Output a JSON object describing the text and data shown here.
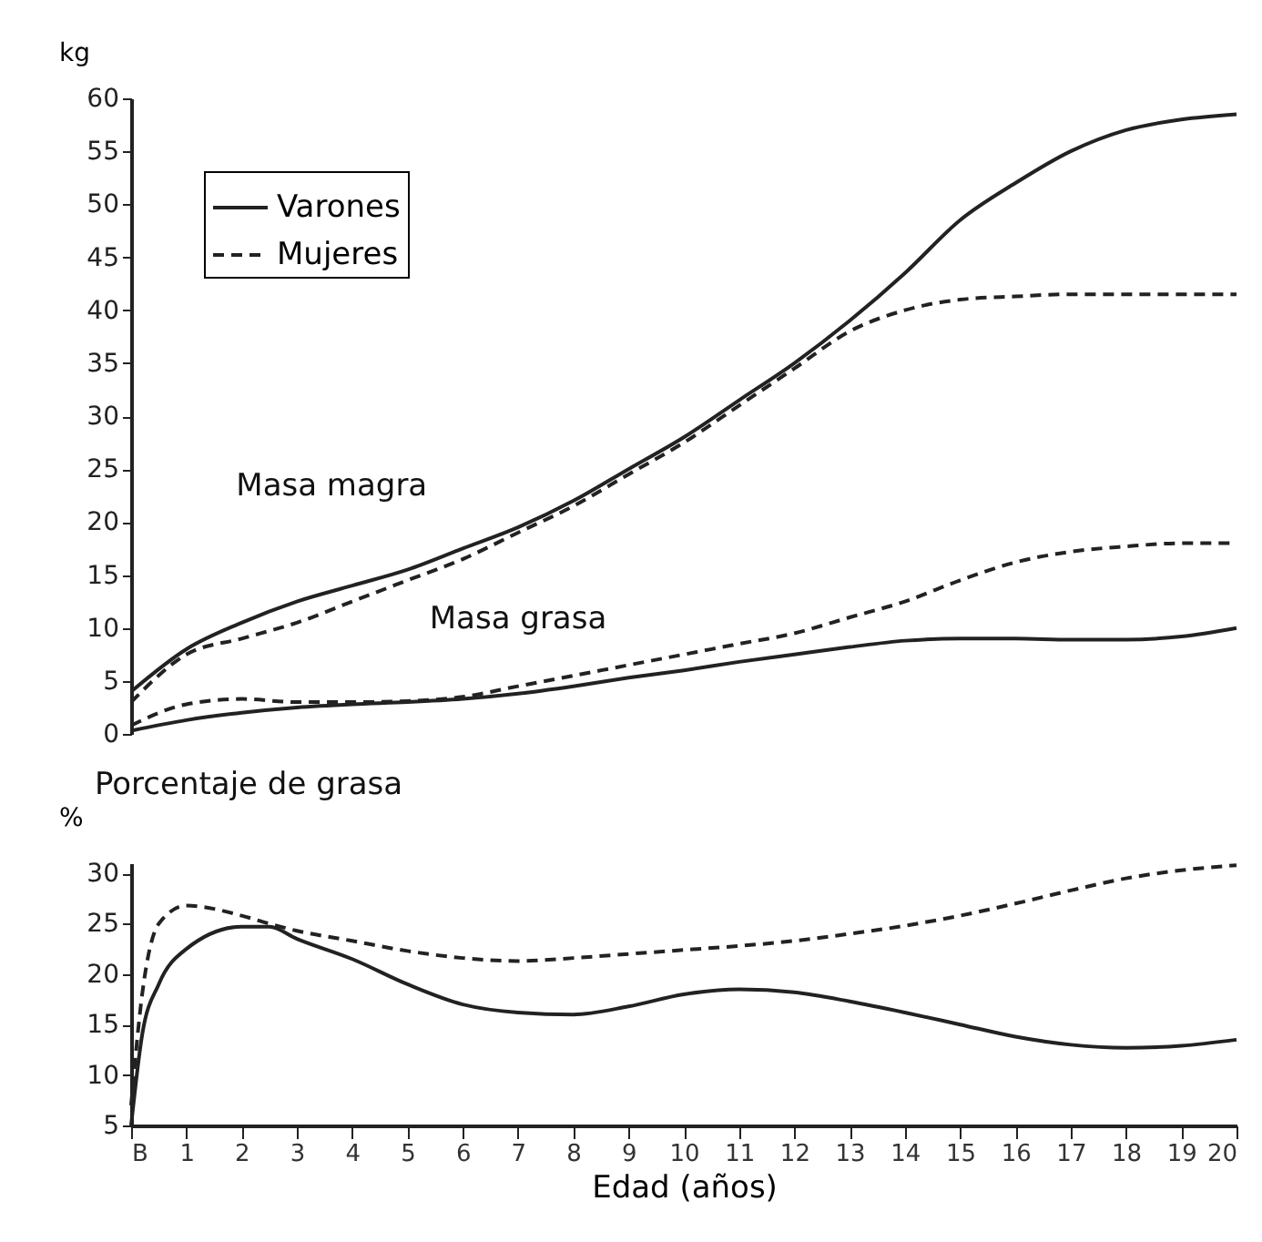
{
  "chart_data": [
    {
      "type": "line",
      "ylabel": "kg",
      "xlim": [
        0,
        20
      ],
      "ylim": [
        0,
        60
      ],
      "yticks": [
        0,
        5,
        10,
        15,
        20,
        25,
        30,
        35,
        40,
        45,
        50,
        55,
        60
      ],
      "tick_labels": "y",
      "grid": false,
      "legend": "top left",
      "marker": "none",
      "x": [
        0,
        1,
        2,
        3,
        4,
        5,
        6,
        7,
        8,
        9,
        10,
        11,
        12,
        13,
        14,
        15,
        16,
        17,
        18,
        19,
        20
      ],
      "annotations": [
        "Masa magra",
        "Masa grasa"
      ],
      "series": [
        {
          "name": "Varones",
          "color": "#222222",
          "line_style": "solid",
          "values": [
            4,
            8,
            10.5,
            12.5,
            14,
            15.5,
            17.5,
            19.5,
            22,
            25,
            28,
            31.5,
            35,
            39,
            43.5,
            48.5,
            52,
            55,
            57,
            58,
            58.5
          ]
        },
        {
          "name": "Mujeres",
          "color": "#222222",
          "line_style": "dashed",
          "values": [
            3,
            7.5,
            9,
            10.5,
            12.5,
            14.5,
            16.5,
            19,
            21.5,
            24.5,
            27.5,
            31,
            34.5,
            38,
            40,
            41,
            41.3,
            41.5,
            41.5,
            41.5,
            41.5
          ]
        },
        {
          "color": "#222222",
          "line_style": "solid",
          "values": [
            0.3,
            1.3,
            2,
            2.5,
            2.8,
            3,
            3.3,
            3.8,
            4.5,
            5.3,
            6,
            6.8,
            7.5,
            8.2,
            8.8,
            9,
            9,
            8.9,
            8.9,
            9.2,
            10
          ]
        },
        {
          "color": "#222222",
          "line_style": "dashed",
          "values": [
            0.8,
            2.8,
            3.3,
            3,
            3,
            3.1,
            3.5,
            4.5,
            5.5,
            6.5,
            7.5,
            8.5,
            9.5,
            11,
            12.5,
            14.5,
            16.2,
            17.2,
            17.7,
            18,
            18
          ]
        }
      ]
    },
    {
      "type": "line",
      "title": "Porcentaje de grasa",
      "ylabel": "%",
      "xlabel": "Edad (años)",
      "xlim": [
        0,
        20
      ],
      "ylim": [
        5,
        31
      ],
      "yticks": [
        5,
        10,
        15,
        20,
        25,
        30
      ],
      "xticks": [
        {
          "value": 0,
          "label": "B"
        },
        1,
        2,
        3,
        4,
        5,
        6,
        7,
        8,
        9,
        10,
        11,
        12,
        13,
        14,
        15,
        16,
        17,
        18,
        19,
        20
      ],
      "grid": false,
      "legend": false,
      "marker": "none",
      "x": [
        0,
        0.2,
        0.5,
        1,
        2,
        2.5,
        3,
        4,
        5,
        6,
        7,
        8,
        9,
        10,
        11,
        12,
        13,
        14,
        15,
        16,
        17,
        18,
        19,
        20
      ],
      "series": [
        {
          "color": "#222222",
          "line_style": "solid",
          "values": [
            5,
            14,
            19,
            22.5,
            24.7,
            24.7,
            23.5,
            21.5,
            19,
            17,
            16.2,
            16,
            16.8,
            18,
            18.5,
            18.2,
            17.3,
            16.2,
            15,
            13.8,
            13,
            12.7,
            12.9,
            13.5
          ]
        },
        {
          "color": "#222222",
          "line_style": "dashed",
          "values": [
            7,
            18,
            25,
            26.8,
            25.8,
            25,
            24.3,
            23.3,
            22.3,
            21.6,
            21.3,
            21.6,
            22,
            22.4,
            22.8,
            23.3,
            24,
            24.8,
            25.8,
            27,
            28.3,
            29.5,
            30.3,
            30.8
          ]
        }
      ]
    }
  ]
}
